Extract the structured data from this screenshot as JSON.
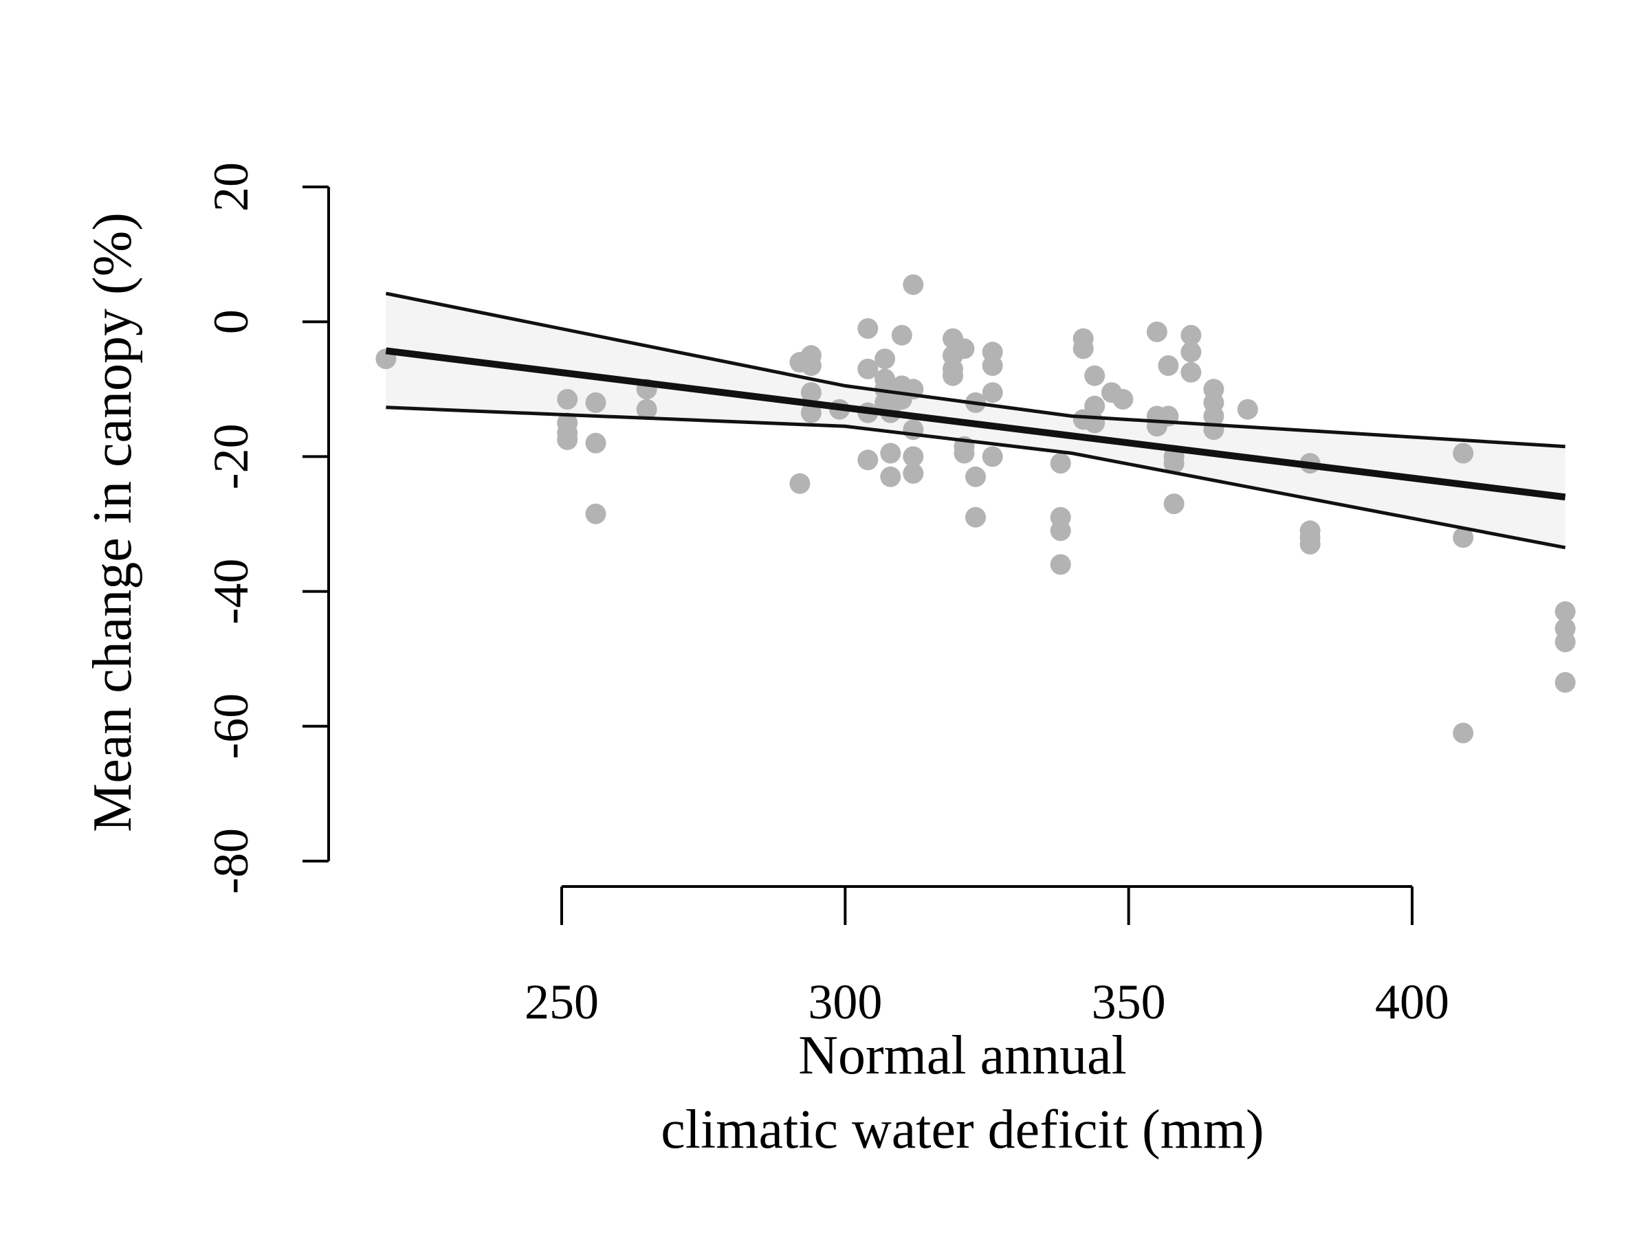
{
  "chart_data": {
    "type": "scatter",
    "xlabel": [
      "Normal annual",
      "climatic water deficit (mm)"
    ],
    "ylabel": "Mean change in canopy (%)",
    "x_ticks": [
      250,
      300,
      350,
      400
    ],
    "y_ticks": [
      -80,
      -60,
      -40,
      -20,
      0,
      20
    ],
    "xlim": [
      210,
      430
    ],
    "ylim": [
      -80,
      20
    ],
    "grid": false,
    "colors": {
      "points": "#b3b3b3",
      "lines": "#111111",
      "band": "#f4f4f4"
    },
    "points": [
      [
        219,
        -5.5
      ],
      [
        251,
        -11.5
      ],
      [
        251,
        -15
      ],
      [
        251,
        -16.5
      ],
      [
        251,
        -17.5
      ],
      [
        256,
        -12
      ],
      [
        256,
        -18
      ],
      [
        256,
        -28.5
      ],
      [
        265,
        -10
      ],
      [
        265,
        -13
      ],
      [
        292,
        -24
      ],
      [
        292,
        -6
      ],
      [
        294,
        -5
      ],
      [
        294,
        -6.5
      ],
      [
        294,
        -10.5
      ],
      [
        294,
        -13.5
      ],
      [
        299,
        -13
      ],
      [
        304,
        -1
      ],
      [
        304,
        -7
      ],
      [
        304,
        -13.5
      ],
      [
        304,
        -20.5
      ],
      [
        307,
        -5.5
      ],
      [
        307,
        -8.5
      ],
      [
        307,
        -10
      ],
      [
        307,
        -12
      ],
      [
        308,
        -13.5
      ],
      [
        308,
        -19.5
      ],
      [
        308,
        -23
      ],
      [
        310,
        -2
      ],
      [
        310,
        -9.5
      ],
      [
        310,
        -11.5
      ],
      [
        312,
        5.5
      ],
      [
        312,
        -10
      ],
      [
        312,
        -16
      ],
      [
        312,
        -20
      ],
      [
        312,
        -22.5
      ],
      [
        319,
        -2.5
      ],
      [
        319,
        -5
      ],
      [
        319,
        -7
      ],
      [
        319,
        -8
      ],
      [
        321,
        -4
      ],
      [
        321,
        -18.5
      ],
      [
        321,
        -19.5
      ],
      [
        323,
        -12
      ],
      [
        323,
        -23
      ],
      [
        323,
        -29
      ],
      [
        326,
        -4.5
      ],
      [
        326,
        -6.5
      ],
      [
        326,
        -10.5
      ],
      [
        326,
        -20
      ],
      [
        338,
        -21
      ],
      [
        338,
        -29
      ],
      [
        338,
        -31
      ],
      [
        338,
        -36
      ],
      [
        342,
        -2.5
      ],
      [
        342,
        -4
      ],
      [
        342,
        -14.5
      ],
      [
        344,
        -8
      ],
      [
        344,
        -12.5
      ],
      [
        344,
        -15
      ],
      [
        347,
        -10.5
      ],
      [
        349,
        -11.5
      ],
      [
        355,
        -1.5
      ],
      [
        355,
        -14
      ],
      [
        355,
        -15.5
      ],
      [
        357,
        -6.5
      ],
      [
        357,
        -14
      ],
      [
        358,
        -20
      ],
      [
        358,
        -21
      ],
      [
        358,
        -27
      ],
      [
        361,
        -2
      ],
      [
        361,
        -4.5
      ],
      [
        361,
        -7.5
      ],
      [
        365,
        -10
      ],
      [
        365,
        -12
      ],
      [
        365,
        -14
      ],
      [
        365,
        -16
      ],
      [
        371,
        -13
      ],
      [
        382,
        -21
      ],
      [
        382,
        -31
      ],
      [
        382,
        -32
      ],
      [
        382,
        -33
      ],
      [
        409,
        -19.5
      ],
      [
        409,
        -32
      ],
      [
        409,
        -61
      ],
      [
        427,
        -43
      ],
      [
        427,
        -45.5
      ],
      [
        427,
        -47.5
      ],
      [
        427,
        -53.5
      ]
    ],
    "fit_line": [
      [
        219,
        -4.3
      ],
      [
        427,
        -26
      ]
    ],
    "ci_upper": [
      [
        219,
        4.2
      ],
      [
        300,
        -9.5
      ],
      [
        340,
        -14
      ],
      [
        427,
        -18.5
      ]
    ],
    "ci_lower": [
      [
        219,
        -12.7
      ],
      [
        300,
        -15.5
      ],
      [
        340,
        -19.5
      ],
      [
        427,
        -33.5
      ]
    ]
  }
}
